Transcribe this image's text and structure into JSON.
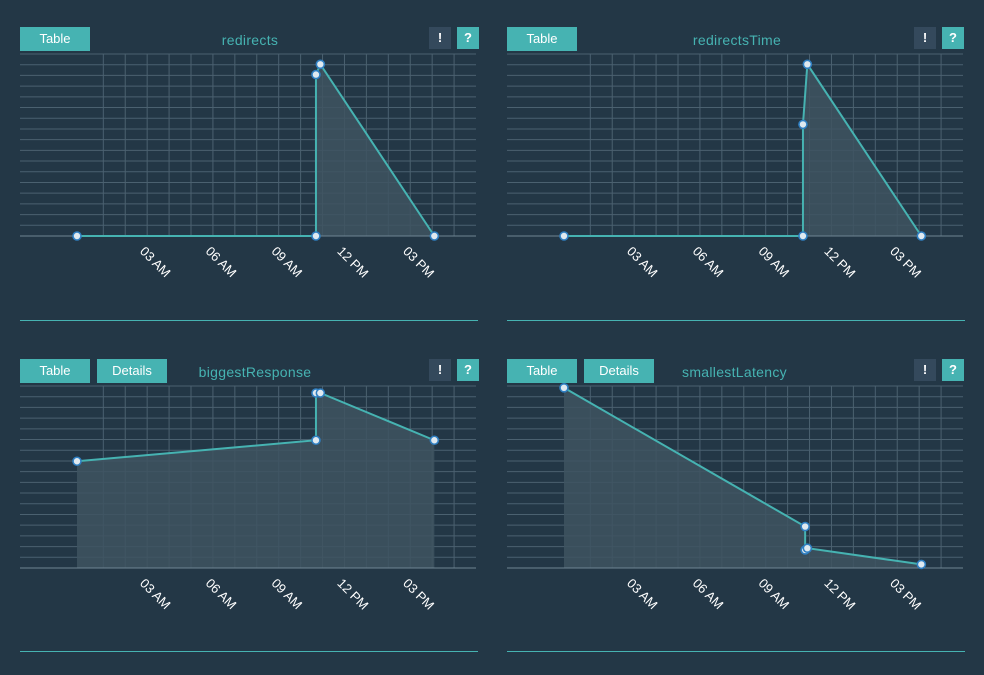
{
  "colors": {
    "background": "#233746",
    "accent": "#46b3b2",
    "grid": "#4b6170",
    "fill": "#3e5360",
    "point_fill": "#dfe9f0",
    "point_stroke": "#2f7fc2"
  },
  "panels": [
    {
      "buttons": [
        "Table"
      ],
      "title": "redirects",
      "excl_label": "!",
      "help_label": "?"
    },
    {
      "buttons": [
        "Table"
      ],
      "title": "redirectsTime",
      "excl_label": "!",
      "help_label": "?"
    },
    {
      "buttons": [
        "Table",
        "Details"
      ],
      "title": "biggestResponse",
      "excl_label": "!",
      "help_label": "?"
    },
    {
      "buttons": [
        "Table",
        "Details"
      ],
      "title": "smallestLatency",
      "excl_label": "!",
      "help_label": "?"
    }
  ],
  "chart_data": [
    {
      "type": "area",
      "x_tick_labels": [
        "03 AM",
        "06 AM",
        "09 AM",
        "12 PM",
        "03 PM"
      ],
      "grid": true,
      "x": [
        -0.2,
        10.7,
        10.7,
        10.9,
        16.1
      ],
      "y": [
        0,
        0,
        0.94,
        1.0,
        0
      ],
      "ylim": [
        0,
        1.06
      ],
      "xlim": [
        -2.8,
        18.0
      ]
    },
    {
      "type": "area",
      "x_tick_labels": [
        "03 AM",
        "06 AM",
        "09 AM",
        "12 PM",
        "03 PM"
      ],
      "grid": true,
      "x": [
        -0.2,
        10.7,
        10.7,
        10.9,
        16.1
      ],
      "y": [
        0,
        0,
        0.65,
        1.0,
        0
      ],
      "ylim": [
        0,
        1.06
      ],
      "xlim": [
        -2.8,
        18.0
      ]
    },
    {
      "type": "area",
      "x_tick_labels": [
        "03 AM",
        "06 AM",
        "09 AM",
        "12 PM",
        "03 PM"
      ],
      "grid": true,
      "x": [
        -0.2,
        10.7,
        10.7,
        10.9,
        16.1
      ],
      "y": [
        0.61,
        0.73,
        1.0,
        1.0,
        0.73
      ],
      "ylim": [
        0,
        1.04
      ],
      "xlim": [
        -2.8,
        18.0
      ]
    },
    {
      "type": "area",
      "x_tick_labels": [
        "03 AM",
        "06 AM",
        "09 AM",
        "12 PM",
        "03 PM"
      ],
      "grid": true,
      "x": [
        -0.2,
        10.8,
        10.8,
        10.9,
        16.1
      ],
      "y": [
        1.0,
        0.23,
        0.1,
        0.11,
        0.02
      ],
      "ylim": [
        0,
        1.01
      ],
      "xlim": [
        -2.8,
        18.0
      ]
    }
  ]
}
